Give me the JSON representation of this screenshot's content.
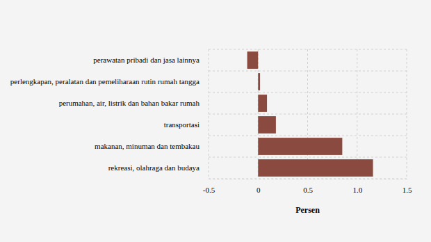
{
  "chart_data": {
    "type": "bar",
    "orientation": "horizontal",
    "x_label": "Persen",
    "categories": [
      "perawatan pribadi dan jasa lainnya",
      "perlengkapan, peralatan dan pemeliharaan rutin rumah tangga",
      "perumahan, air, listrik dan bahan bakar rumah",
      "transportasi",
      "makanan, minuman dan tembakau",
      "rekreasi, olahraga dan budaya"
    ],
    "values": [
      -0.11,
      0.02,
      0.09,
      0.18,
      0.85,
      1.16
    ],
    "color": "#8b4a3f",
    "xlim": [
      -0.5,
      1.5
    ],
    "xticks": [
      -0.5,
      0,
      0.5,
      {
        "value": 1.0,
        "label": "1.0"
      },
      1.5
    ],
    "grid": true
  }
}
